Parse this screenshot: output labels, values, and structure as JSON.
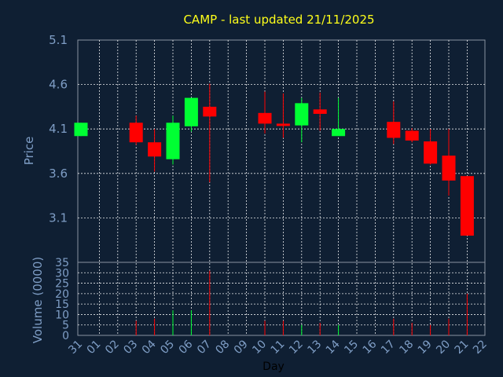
{
  "chart_data": {
    "type": "candlestick",
    "title": "CAMP - last updated 21/11/2025",
    "xlabel": "Day",
    "price_panel": {
      "ylabel": "Price",
      "ylim": [
        2.6,
        5.1
      ],
      "yticks": [
        "5.1",
        "4.6",
        "4.1",
        "3.6",
        "3.1"
      ],
      "ytick_values": [
        5.1,
        4.6,
        4.1,
        3.6,
        3.1
      ]
    },
    "volume_panel": {
      "ylabel": "Volume (0000)",
      "ylim": [
        0,
        35
      ],
      "yticks": [
        "35",
        "30",
        "25",
        "20",
        "15",
        "10",
        "5",
        "0"
      ],
      "ytick_values": [
        35,
        30,
        25,
        20,
        15,
        10,
        5,
        0
      ]
    },
    "x_ticks": [
      "31",
      "01",
      "02",
      "03",
      "04",
      "05",
      "06",
      "07",
      "08",
      "09",
      "10",
      "11",
      "12",
      "13",
      "14",
      "15",
      "16",
      "17",
      "18",
      "19",
      "20",
      "21",
      "22"
    ],
    "candles": [
      {
        "day": "31",
        "open": 4.02,
        "close": 4.17,
        "high": 4.17,
        "low": 4.02,
        "volume": 0
      },
      {
        "day": "03",
        "open": 4.17,
        "close": 3.95,
        "high": 4.25,
        "low": 3.92,
        "volume": 7
      },
      {
        "day": "04",
        "open": 3.95,
        "close": 3.79,
        "high": 4.1,
        "low": 3.62,
        "volume": 8
      },
      {
        "day": "05",
        "open": 3.76,
        "close": 4.17,
        "high": 4.25,
        "low": 3.7,
        "volume": 12
      },
      {
        "day": "06",
        "open": 4.13,
        "close": 4.45,
        "high": 4.45,
        "low": 4.07,
        "volume": 12
      },
      {
        "day": "07",
        "open": 4.35,
        "close": 4.24,
        "high": 4.61,
        "low": 3.5,
        "volume": 31
      },
      {
        "day": "10",
        "open": 4.28,
        "close": 4.16,
        "high": 4.52,
        "low": 4.05,
        "volume": 7
      },
      {
        "day": "11",
        "open": 4.16,
        "close": 4.14,
        "high": 4.5,
        "low": 4.0,
        "volume": 7
      },
      {
        "day": "12",
        "open": 4.14,
        "close": 4.39,
        "high": 4.45,
        "low": 3.95,
        "volume": 5
      },
      {
        "day": "13",
        "open": 4.32,
        "close": 4.27,
        "high": 4.51,
        "low": 4.08,
        "volume": 6
      },
      {
        "day": "14",
        "open": 4.02,
        "close": 4.1,
        "high": 4.45,
        "low": 4.02,
        "volume": 5
      },
      {
        "day": "17",
        "open": 4.18,
        "close": 4.0,
        "high": 4.41,
        "low": 3.93,
        "volume": 8
      },
      {
        "day": "18",
        "open": 4.08,
        "close": 3.97,
        "high": 4.11,
        "low": 3.95,
        "volume": 6
      },
      {
        "day": "19",
        "open": 3.96,
        "close": 3.71,
        "high": 4.1,
        "low": 3.7,
        "volume": 5
      },
      {
        "day": "20",
        "open": 3.8,
        "close": 3.52,
        "high": 4.1,
        "low": 3.35,
        "volume": 8
      },
      {
        "day": "21",
        "open": 3.57,
        "close": 2.9,
        "high": 3.57,
        "low": 2.9,
        "volume": 20
      }
    ],
    "colors": {
      "background": "#0f1f33",
      "plot_background": "#000000",
      "up": "#00ff33",
      "down": "#ff0000",
      "title": "#ffff1a",
      "axis_text": "#7f9ec6",
      "grid": "#ffffff"
    },
    "grid": true
  }
}
